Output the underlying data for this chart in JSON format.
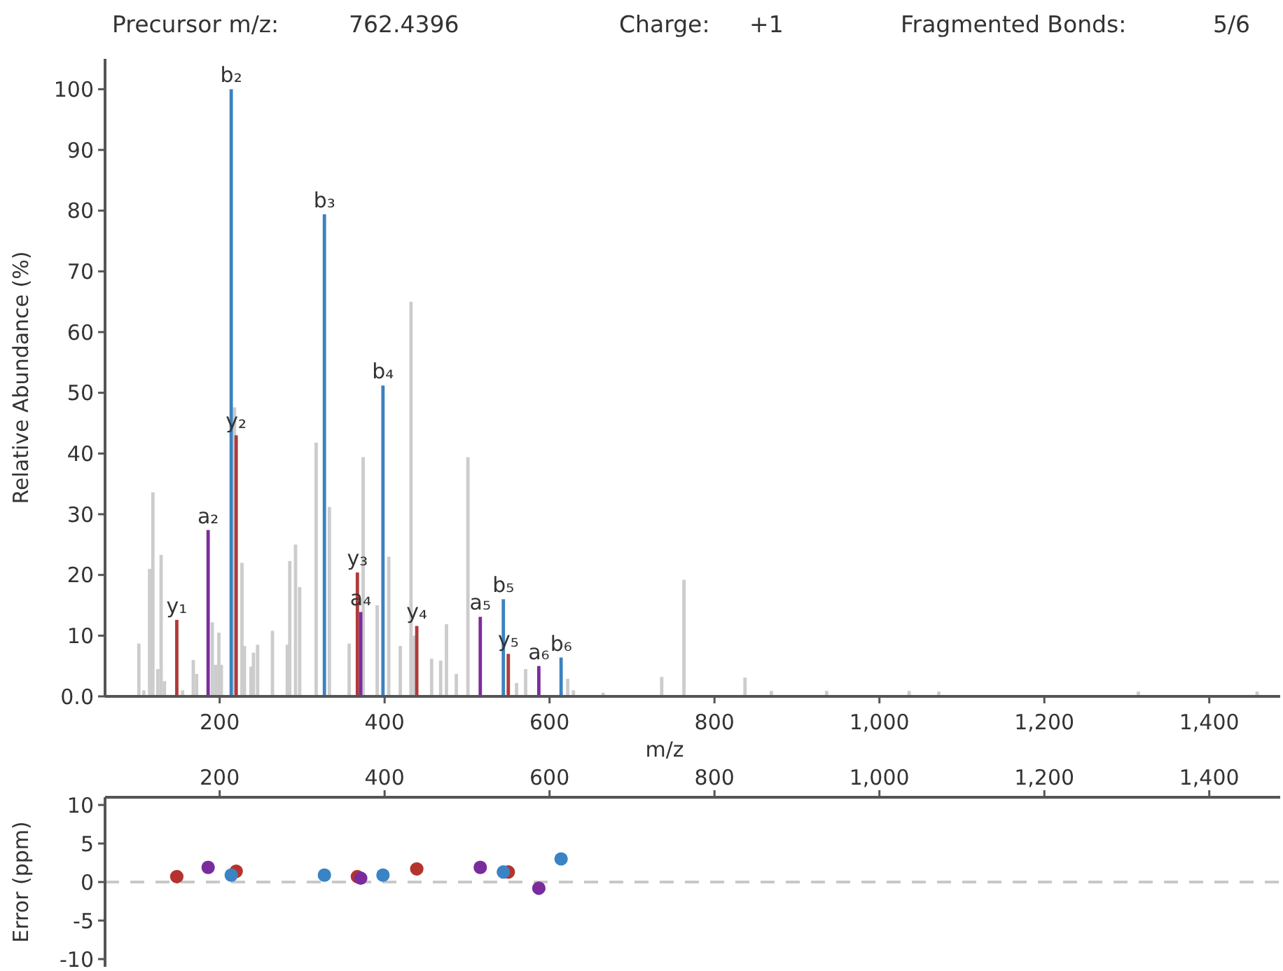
{
  "chart_data": [
    {
      "type": "bar",
      "xlabel": "m/z",
      "ylabel": "Relative Abundance (%)",
      "xlim": [
        61,
        1486
      ],
      "ylim": [
        0,
        105
      ],
      "xticks": [
        200,
        400,
        600,
        800,
        {
          "value": 1000,
          "label": "1,000"
        },
        {
          "value": 1200,
          "label": "1,200"
        },
        {
          "value": 1400,
          "label": "1,400"
        }
      ],
      "yticks": [
        {
          "value": 0,
          "label": "0.0"
        },
        10,
        20,
        30,
        40,
        50,
        60,
        70,
        80,
        90,
        100
      ],
      "series": [
        {
          "color": "#cccccc",
          "x": [
            102,
            108,
            115,
            119,
            125,
            129,
            133,
            155,
            168,
            172,
            191,
            195,
            199,
            202,
            218,
            227,
            230,
            238,
            241,
            246,
            264,
            282,
            285,
            292,
            297,
            317,
            333,
            357,
            374,
            391,
            405,
            419,
            432,
            436,
            457,
            468,
            475,
            487,
            501,
            560,
            571,
            622,
            629,
            665,
            736,
            763,
            837,
            869,
            936,
            1036,
            1072,
            1314,
            1458
          ],
          "values": [
            8.7,
            1.0,
            21.0,
            33.6,
            4.5,
            23.3,
            2.5,
            1.0,
            6.0,
            3.7,
            12.2,
            5.2,
            10.5,
            5.2,
            47.6,
            22.0,
            8.3,
            4.9,
            7.2,
            8.5,
            10.8,
            8.5,
            22.3,
            25.0,
            18.0,
            41.8,
            31.2,
            8.7,
            39.4,
            15.0,
            23.0,
            8.3,
            65.0,
            10.0,
            6.2,
            5.9,
            11.9,
            3.7,
            39.4,
            2.2,
            4.5,
            2.9,
            1.0,
            0.6,
            3.2,
            19.2,
            3.1,
            0.9,
            0.9,
            0.9,
            0.8,
            0.8,
            0.8
          ]
        },
        {
          "color": "#b03a3a",
          "x": [
            148,
            220,
            367,
            439,
            550
          ],
          "values": [
            12.6,
            43.0,
            20.4,
            11.6,
            7.0
          ]
        },
        {
          "color": "#7b2c9f",
          "x": [
            186,
            371,
            516,
            587
          ],
          "values": [
            27.4,
            13.9,
            13.1,
            5.0
          ]
        },
        {
          "color": "#3b82c0",
          "x": [
            214,
            327,
            398,
            544,
            614
          ],
          "values": [
            100,
            79.4,
            51.2,
            16.0,
            6.4
          ]
        }
      ],
      "annotations": [
        "Precursor m/z:",
        "762.4396",
        "Charge:",
        "+1",
        "Fragmented Bonds:",
        "5/6",
        {
          "text": "y₁",
          "x": 148,
          "y": 12.6
        },
        {
          "text": "a₂",
          "x": 186,
          "y": 27.4
        },
        {
          "text": "b₂",
          "x": 214,
          "y": 100
        },
        {
          "text": "y₂",
          "x": 220,
          "y": 43.0
        },
        {
          "text": "b₃",
          "x": 327,
          "y": 79.4
        },
        {
          "text": "y₃",
          "x": 367,
          "y": 20.4
        },
        {
          "text": "a₄",
          "x": 371,
          "y": 13.9
        },
        {
          "text": "b₄",
          "x": 398,
          "y": 51.2
        },
        {
          "text": "y₄",
          "x": 439,
          "y": 11.6
        },
        {
          "text": "a₅",
          "x": 516,
          "y": 13.1
        },
        {
          "text": "b₅",
          "x": 544,
          "y": 16.0
        },
        {
          "text": "y₅",
          "x": 550,
          "y": 7.0
        },
        {
          "text": "a₆",
          "x": 587,
          "y": 5.0
        },
        {
          "text": "b₆",
          "x": 614,
          "y": 6.4
        }
      ]
    },
    {
      "type": "scatter",
      "ylabel": "Error (ppm)",
      "marker": "circle",
      "xlim": [
        61,
        1486
      ],
      "ylim": [
        -11,
        11
      ],
      "xticks": [
        200,
        400,
        600,
        800,
        {
          "value": 1000,
          "label": "1,000"
        },
        {
          "value": 1200,
          "label": "1,200"
        },
        {
          "value": 1400,
          "label": "1,400"
        }
      ],
      "yticks": [
        10,
        5,
        0,
        -5,
        -10
      ],
      "series": [
        {
          "color": "#b5332e",
          "x": [
            148,
            220,
            367,
            439,
            550
          ],
          "values": [
            0.7,
            1.4,
            0.7,
            1.7,
            1.3
          ]
        },
        {
          "color": "#7b2c9c",
          "x": [
            186,
            371,
            516,
            587
          ],
          "values": [
            1.9,
            0.5,
            1.9,
            -0.8
          ]
        },
        {
          "color": "#3a83c4",
          "x": [
            214,
            327,
            398,
            544,
            614
          ],
          "values": [
            0.9,
            0.9,
            0.9,
            1.3,
            3.0
          ]
        }
      ],
      "ref_lines": [
        {
          "axis": "y",
          "value": 0,
          "color": "#c8c8c8",
          "line_style": "dashed"
        }
      ]
    }
  ]
}
